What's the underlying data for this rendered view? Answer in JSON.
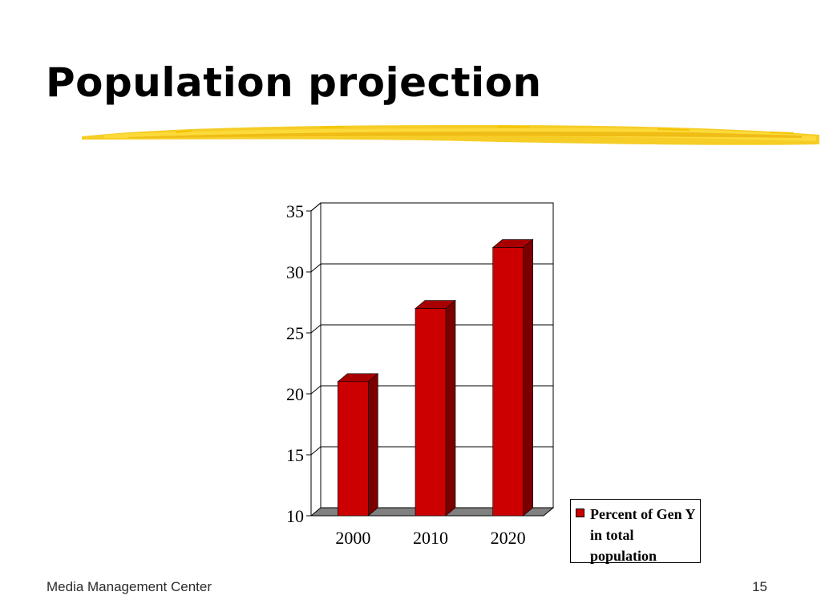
{
  "slide": {
    "title": "Population projection",
    "footer_left": "Media Management Center",
    "page_number": "15"
  },
  "colors": {
    "bar_front": "#cc0000",
    "bar_side": "#7a0000",
    "bar_top": "#a80000",
    "floor": "#808080",
    "underline": "#f5c400"
  },
  "chart_data": {
    "type": "bar",
    "categories": [
      "2000",
      "2010",
      "2020"
    ],
    "series": [
      {
        "name": "Percent of Gen Y in total population",
        "values": [
          21,
          27,
          32
        ]
      }
    ],
    "ylim": [
      10,
      35
    ],
    "yticks": [
      10,
      15,
      20,
      25,
      30,
      35
    ],
    "grid": true,
    "legend": "right",
    "three_d": true
  }
}
